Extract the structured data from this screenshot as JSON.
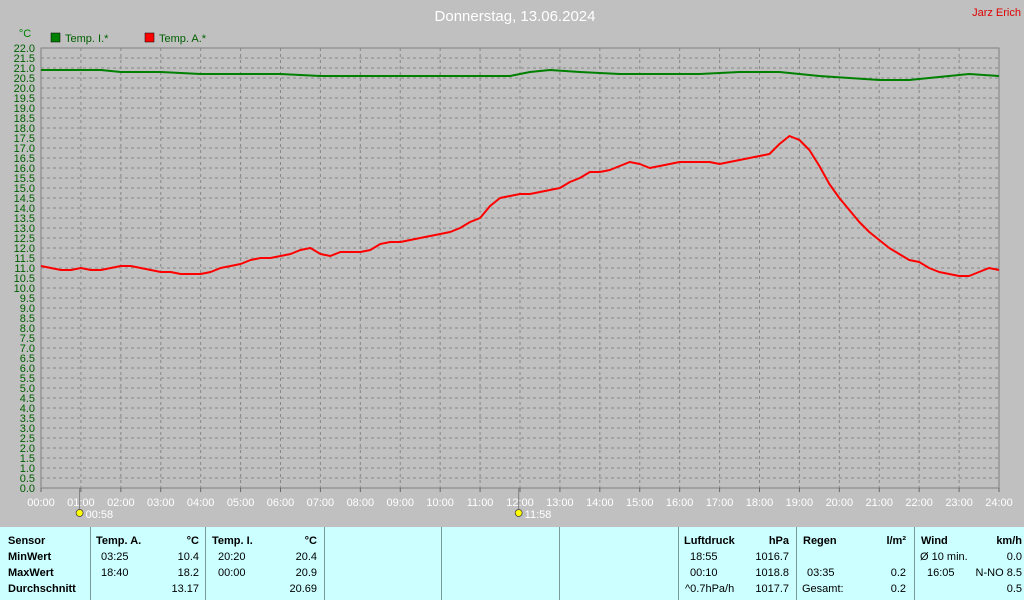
{
  "title": "Donnerstag, 13.06.2024",
  "author": "Jarz Erich",
  "unit_label": "°C",
  "legend": [
    {
      "name": "Temp. I.*",
      "color": "#008000"
    },
    {
      "name": "Temp. A.*",
      "color": "#ff0000"
    }
  ],
  "markers": [
    {
      "label": "00:58",
      "x": 0.967,
      "icon": "sunrise-icon"
    },
    {
      "label": "11:58",
      "x": 11.967,
      "icon": "sun-icon"
    }
  ],
  "chart_data": {
    "type": "line",
    "title": "Donnerstag, 13.06.2024",
    "ylabel": "°C",
    "xlim": [
      0,
      24
    ],
    "ylim": [
      0,
      22
    ],
    "grid": true,
    "legend_position": "top-left",
    "x_ticks": [
      "00:00",
      "01:00",
      "02:00",
      "03:00",
      "04:00",
      "05:00",
      "06:00",
      "07:00",
      "08:00",
      "09:00",
      "10:00",
      "11:00",
      "12:00",
      "13:00",
      "14:00",
      "15:00",
      "16:00",
      "17:00",
      "18:00",
      "19:00",
      "20:00",
      "21:00",
      "22:00",
      "23:00",
      "24:00"
    ],
    "y_ticks": [
      "0.0",
      "0.5",
      "1.0",
      "1.5",
      "2.0",
      "2.5",
      "3.0",
      "3.5",
      "4.0",
      "4.5",
      "5.0",
      "5.5",
      "6.0",
      "6.5",
      "7.0",
      "7.5",
      "8.0",
      "8.5",
      "9.0",
      "9.5",
      "10.0",
      "10.5",
      "11.0",
      "11.5",
      "12.0",
      "12.5",
      "13.0",
      "13.5",
      "14.0",
      "14.5",
      "15.0",
      "15.5",
      "16.0",
      "16.5",
      "17.0",
      "17.5",
      "18.0",
      "18.5",
      "19.0",
      "19.5",
      "20.0",
      "20.5",
      "21.0",
      "21.5",
      "22.0"
    ],
    "series": [
      {
        "name": "Temp. I.*",
        "color": "#008000",
        "x": [
          0,
          0.75,
          1.5,
          2,
          3,
          4,
          5,
          6,
          7,
          8,
          9,
          10,
          11,
          11.75,
          12.25,
          12.75,
          13.5,
          14.5,
          15.5,
          16.5,
          17.5,
          18.5,
          19,
          19.5,
          20.25,
          21,
          21.75,
          22.25,
          22.75,
          23.25,
          24
        ],
        "y": [
          20.9,
          20.9,
          20.9,
          20.8,
          20.8,
          20.7,
          20.7,
          20.7,
          20.6,
          20.6,
          20.6,
          20.6,
          20.6,
          20.6,
          20.8,
          20.9,
          20.8,
          20.7,
          20.7,
          20.7,
          20.8,
          20.8,
          20.7,
          20.6,
          20.5,
          20.4,
          20.4,
          20.5,
          20.6,
          20.7,
          20.6
        ]
      },
      {
        "name": "Temp. A.*",
        "color": "#ff0000",
        "x": [
          0,
          0.25,
          0.5,
          0.75,
          1,
          1.25,
          1.5,
          1.75,
          2,
          2.25,
          2.5,
          2.75,
          3,
          3.25,
          3.5,
          3.75,
          4,
          4.25,
          4.5,
          4.75,
          5,
          5.25,
          5.5,
          5.75,
          6,
          6.25,
          6.5,
          6.75,
          7,
          7.25,
          7.5,
          7.75,
          8,
          8.25,
          8.5,
          8.75,
          9,
          9.25,
          9.5,
          9.75,
          10,
          10.25,
          10.5,
          10.75,
          11,
          11.25,
          11.5,
          11.75,
          12,
          12.25,
          12.5,
          12.75,
          13,
          13.25,
          13.5,
          13.75,
          14,
          14.25,
          14.5,
          14.75,
          15,
          15.25,
          15.5,
          15.75,
          16,
          16.25,
          16.5,
          16.75,
          17,
          17.25,
          17.5,
          17.75,
          18,
          18.25,
          18.5,
          18.75,
          19,
          19.25,
          19.5,
          19.75,
          20,
          20.25,
          20.5,
          20.75,
          21,
          21.25,
          21.5,
          21.75,
          22,
          22.25,
          22.5,
          22.75,
          23,
          23.25,
          23.5,
          23.75,
          24
        ],
        "y": [
          11.1,
          11.0,
          10.9,
          10.9,
          11.0,
          10.9,
          10.9,
          11.0,
          11.1,
          11.1,
          11.0,
          10.9,
          10.8,
          10.8,
          10.7,
          10.7,
          10.7,
          10.8,
          11.0,
          11.1,
          11.2,
          11.4,
          11.5,
          11.5,
          11.6,
          11.7,
          11.9,
          12.0,
          11.7,
          11.6,
          11.8,
          11.8,
          11.8,
          11.9,
          12.2,
          12.3,
          12.3,
          12.4,
          12.5,
          12.6,
          12.7,
          12.8,
          13.0,
          13.3,
          13.5,
          14.1,
          14.5,
          14.6,
          14.7,
          14.7,
          14.8,
          14.9,
          15.0,
          15.3,
          15.5,
          15.8,
          15.8,
          15.9,
          16.1,
          16.3,
          16.2,
          16.0,
          16.1,
          16.2,
          16.3,
          16.3,
          16.3,
          16.3,
          16.2,
          16.3,
          16.4,
          16.5,
          16.6,
          16.7,
          17.2,
          17.6,
          17.4,
          16.9,
          16.1,
          15.2,
          14.5,
          13.9,
          13.3,
          12.8,
          12.4,
          12.0,
          11.7,
          11.4,
          11.3,
          11.0,
          10.8,
          10.7,
          10.6,
          10.6,
          10.8,
          11.0,
          10.9
        ]
      }
    ]
  },
  "stats": {
    "sensor": {
      "header": "Sensor",
      "rows": [
        "MinWert",
        "MaxWert",
        "Durchschnitt"
      ]
    },
    "temp_a": {
      "header": "Temp. A.",
      "unit": "°C",
      "min_time": "03:25",
      "min": "10.4",
      "max_time": "18:40",
      "max": "18.2",
      "avg": "13.17"
    },
    "temp_i": {
      "header": "Temp. I.",
      "unit": "°C",
      "min_time": "20:20",
      "min": "20.4",
      "max_time": "00:00",
      "max": "20.9",
      "avg": "20.69"
    },
    "pressure": {
      "header": "Luftdruck",
      "unit": "hPa",
      "min_time": "18:55",
      "min": "1016.7",
      "max_time": "00:10",
      "max": "1018.8",
      "avg_label": "^0.7hPa/h",
      "avg": "1017.7"
    },
    "rain": {
      "header": "Regen",
      "unit": "l/m²",
      "min_time": "",
      "min": "",
      "max_time": "03:35",
      "max": "0.2",
      "avg_label": "Gesamt:",
      "avg": "0.2"
    },
    "wind": {
      "header": "Wind",
      "unit": "km/h",
      "min_time": "Ø 10 min.",
      "min": "0.0",
      "max_time": "16:05",
      "max": "N-NO 8.5",
      "avg": "0.5"
    }
  }
}
